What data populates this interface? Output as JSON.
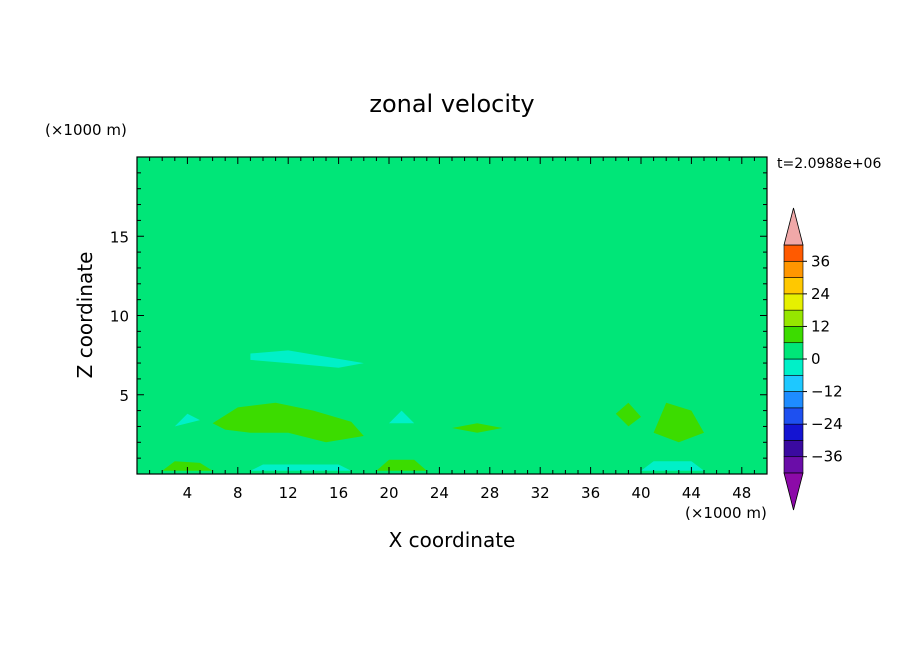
{
  "chart_data": {
    "type": "heatmap",
    "title": "zonal velocity",
    "xlabel": "X coordinate",
    "ylabel": "Z coordinate",
    "x_unit": "(×1000 m)",
    "y_unit": "(×1000 m)",
    "time_label": "t=2.0988e+06",
    "xlim": [
      0,
      50
    ],
    "ylim": [
      0,
      20
    ],
    "x_ticks": [
      4,
      8,
      12,
      16,
      20,
      24,
      28,
      32,
      36,
      40,
      44,
      48
    ],
    "y_ticks": [
      5,
      10,
      15
    ],
    "colorbar": {
      "levels": [
        -42,
        -36,
        -30,
        -24,
        -18,
        -12,
        -6,
        0,
        6,
        12,
        18,
        24,
        30,
        36,
        42
      ],
      "tick_values": [
        -36,
        -24,
        -12,
        0,
        12,
        24,
        36
      ],
      "tick_labels": [
        "−36",
        "−24",
        "−12",
        "0",
        "12",
        "24",
        "36"
      ],
      "colors": [
        "#6a0da8",
        "#3a0aa0",
        "#1414d2",
        "#1e50f0",
        "#1e8cff",
        "#1ec8ff",
        "#00f0c8",
        "#00e678",
        "#3cdc00",
        "#96e600",
        "#e6f000",
        "#ffc800",
        "#ff9600",
        "#ff5a00",
        "#e61e1e"
      ],
      "under_color": "#8c0aa8",
      "over_color": "#f0a8a8"
    },
    "regions": [
      {
        "value": 3,
        "points": [
          [
            0,
            2.8
          ],
          [
            3,
            3.5
          ],
          [
            6,
            4.5
          ],
          [
            10,
            4.8
          ],
          [
            14,
            4.6
          ],
          [
            17,
            4.2
          ],
          [
            20,
            4.5
          ],
          [
            22,
            3.6
          ],
          [
            26,
            2.9
          ],
          [
            30,
            3.3
          ],
          [
            34,
            3.5
          ],
          [
            37,
            4.6
          ],
          [
            40,
            4.2
          ],
          [
            43,
            4.5
          ],
          [
            46,
            3.6
          ],
          [
            50,
            3.3
          ],
          [
            50,
            0.9
          ],
          [
            45,
            0.8
          ],
          [
            40,
            0.3
          ],
          [
            35,
            0.6
          ],
          [
            30,
            0.5
          ],
          [
            25,
            0.8
          ],
          [
            20,
            0.6
          ],
          [
            15,
            0.8
          ],
          [
            10,
            0.9
          ],
          [
            5,
            0.7
          ],
          [
            0,
            0.6
          ]
        ]
      },
      {
        "value": 9,
        "points": [
          [
            6,
            3.2
          ],
          [
            8,
            4.2
          ],
          [
            11,
            4.5
          ],
          [
            14,
            4.0
          ],
          [
            17,
            3.3
          ],
          [
            18,
            2.4
          ],
          [
            15,
            2.0
          ],
          [
            12,
            2.6
          ],
          [
            9,
            2.6
          ],
          [
            7,
            2.8
          ]
        ]
      },
      {
        "value": 9,
        "points": [
          [
            38,
            3.8
          ],
          [
            39,
            4.5
          ],
          [
            40,
            3.6
          ],
          [
            39,
            3.0
          ]
        ]
      },
      {
        "value": 9,
        "points": [
          [
            41,
            2.6
          ],
          [
            42,
            4.5
          ],
          [
            44,
            4.0
          ],
          [
            45,
            2.6
          ],
          [
            43,
            2.0
          ]
        ]
      },
      {
        "value": 9,
        "points": [
          [
            25,
            2.9
          ],
          [
            27,
            3.2
          ],
          [
            29,
            2.9
          ],
          [
            27,
            2.6
          ]
        ]
      },
      {
        "value": 9,
        "points": [
          [
            19,
            0.2
          ],
          [
            20,
            0.9
          ],
          [
            22,
            0.9
          ],
          [
            23,
            0.2
          ]
        ]
      },
      {
        "value": 9,
        "points": [
          [
            2,
            0.2
          ],
          [
            3,
            0.8
          ],
          [
            5,
            0.7
          ],
          [
            6,
            0.2
          ]
        ]
      },
      {
        "value": -3,
        "points": [
          [
            9,
            7.6
          ],
          [
            12,
            7.8
          ],
          [
            15,
            7.4
          ],
          [
            18,
            7.0
          ],
          [
            16,
            6.7
          ],
          [
            12,
            7.0
          ],
          [
            9,
            7.2
          ]
        ]
      },
      {
        "value": -3,
        "points": [
          [
            3,
            3.0
          ],
          [
            4,
            3.8
          ],
          [
            5,
            3.4
          ]
        ]
      },
      {
        "value": -3,
        "points": [
          [
            20,
            3.2
          ],
          [
            21,
            4.0
          ],
          [
            22,
            3.2
          ]
        ]
      },
      {
        "value": -3,
        "points": [
          [
            40,
            0.2
          ],
          [
            41,
            0.8
          ],
          [
            44,
            0.8
          ],
          [
            45,
            0.2
          ]
        ]
      },
      {
        "value": -3,
        "points": [
          [
            9,
            0.2
          ],
          [
            10,
            0.6
          ],
          [
            16,
            0.6
          ],
          [
            17,
            0.2
          ]
        ]
      },
      {
        "value": 3,
        "points": [
          [
            0,
            10.4
          ],
          [
            5,
            10.1
          ],
          [
            10,
            9.8
          ],
          [
            15,
            9.7
          ],
          [
            20,
            9.8
          ],
          [
            25,
            10.1
          ],
          [
            30,
            10.9
          ],
          [
            35,
            11.6
          ],
          [
            40,
            11.6
          ],
          [
            45,
            11.4
          ],
          [
            50,
            11.4
          ],
          [
            50,
            14.2
          ],
          [
            45,
            14.2
          ],
          [
            40,
            13.9
          ],
          [
            35,
            13.7
          ],
          [
            30,
            13.3
          ],
          [
            25,
            13.0
          ],
          [
            20,
            13.2
          ],
          [
            18,
            14.7
          ],
          [
            15,
            15.2
          ],
          [
            10,
            15.3
          ],
          [
            5,
            15.0
          ],
          [
            0,
            15.6
          ]
        ]
      },
      {
        "value": 3,
        "points": [
          [
            9,
            16.5
          ],
          [
            12,
            18.0
          ],
          [
            16,
            17.8
          ],
          [
            18,
            17.0
          ],
          [
            16,
            16.0
          ],
          [
            12,
            16.3
          ]
        ]
      },
      {
        "value": 3,
        "points": [
          [
            18,
            19.3
          ],
          [
            22,
            17.0
          ],
          [
            26,
            16.3
          ],
          [
            30,
            15.5
          ],
          [
            35,
            16.2
          ],
          [
            38,
            15.8
          ],
          [
            40,
            17.4
          ],
          [
            44,
            16.6
          ],
          [
            47,
            18.4
          ],
          [
            50,
            17.6
          ],
          [
            50,
            20
          ],
          [
            18,
            20
          ]
        ]
      }
    ]
  }
}
